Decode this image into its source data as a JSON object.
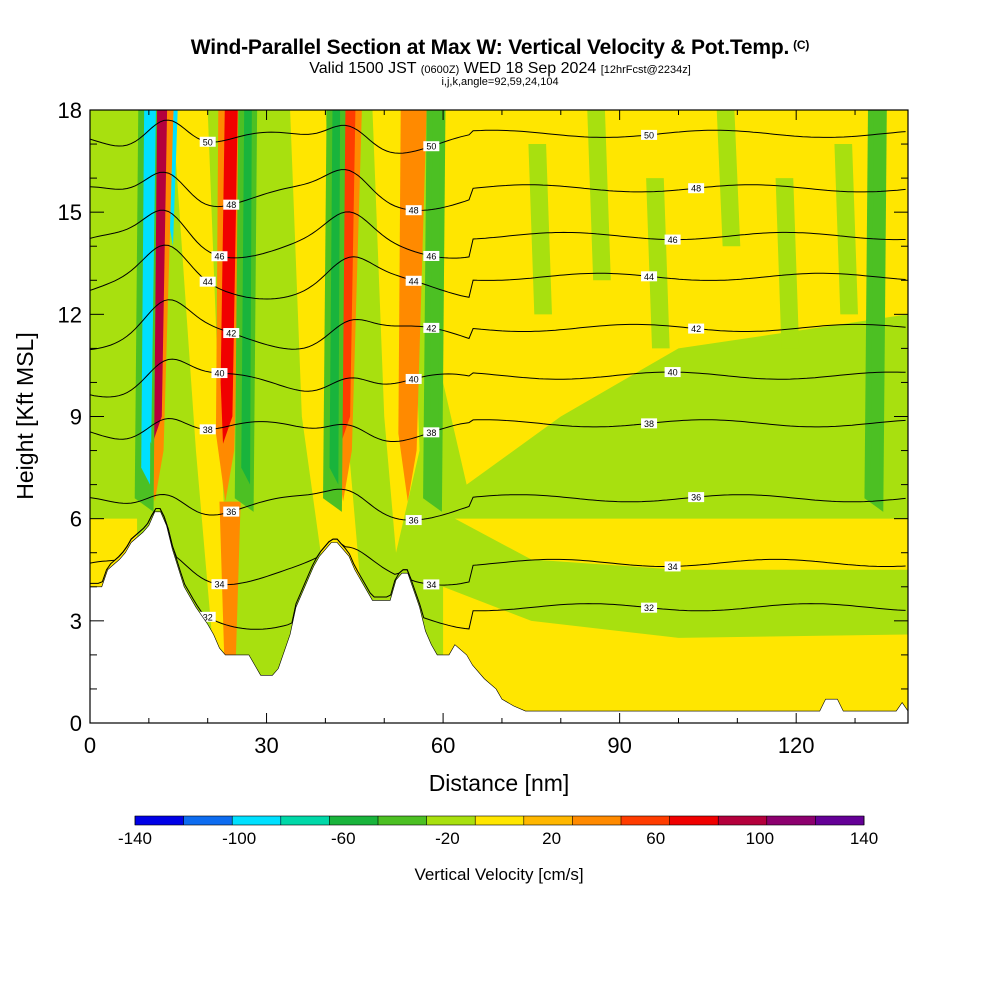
{
  "header": {
    "title": "Wind-Parallel Section at Max W: Vertical Velocity & Pot.Temp.",
    "title_mark": "(C)",
    "valid_a": "Valid 1500 JST",
    "valid_b": "(0600Z)",
    "valid_c": "WED 18 Sep 2024",
    "valid_d": "[12hrFcst@2234z]",
    "params": "i,j,k,angle=92,59,24,104"
  },
  "chart_data": {
    "type": "heatmap",
    "xlabel": "Distance [nm]",
    "ylabel": "Height [Kft MSL]",
    "xlim": [
      0,
      139
    ],
    "ylim": [
      0,
      18
    ],
    "x_ticks": [
      "0",
      "30",
      "60",
      "90",
      "120"
    ],
    "y_ticks": [
      "0",
      "3",
      "6",
      "9",
      "12",
      "15",
      "18"
    ],
    "colorbar": {
      "title": "Vertical Velocity [cm/s]",
      "tick_labels": [
        "-140",
        "-100",
        "-60",
        "-20",
        "20",
        "60",
        "100",
        "140"
      ],
      "range": [
        -140,
        140
      ],
      "colors": [
        "#0000e6",
        "#0d6cf0",
        "#00e0ff",
        "#00d8a8",
        "#19b43c",
        "#4cc023",
        "#a8e00f",
        "#ffe600",
        "#ffb700",
        "#ff8a00",
        "#ff3c00",
        "#f00000",
        "#b4003c",
        "#8c006e",
        "#640096"
      ]
    },
    "background_level": "#a8e00f",
    "updraft_bands": [
      {
        "x_center": 12,
        "peak_cm_s": 120,
        "color_peak": "#b4003c"
      },
      {
        "x_center": 24,
        "peak_cm_s": 90,
        "color_peak": "#f00000"
      },
      {
        "x_center": 44,
        "peak_cm_s": 70,
        "color_peak": "#ff3c00"
      },
      {
        "x_center": 55,
        "peak_cm_s": 50,
        "color_peak": "#ff8a00"
      }
    ],
    "downdraft_bands": [
      {
        "x_center": 10,
        "min_cm_s": -100
      },
      {
        "x_center": 27,
        "min_cm_s": -60
      },
      {
        "x_center": 42,
        "min_cm_s": -60
      },
      {
        "x_center": 59,
        "min_cm_s": -40
      },
      {
        "x_center": 134,
        "min_cm_s": -40
      }
    ],
    "isentropes": [
      {
        "label": "32",
        "y_right": 3.4
      },
      {
        "label": "34",
        "y_right": 4.7
      },
      {
        "label": "36",
        "y_right": 6.6
      },
      {
        "label": "38",
        "y_right": 8.8
      },
      {
        "label": "40",
        "y_right": 10.2
      },
      {
        "label": "42",
        "y_right": 11.6
      },
      {
        "label": "44",
        "y_right": 13.1
      },
      {
        "label": "46",
        "y_right": 14.3
      },
      {
        "label": "48",
        "y_right": 15.7
      },
      {
        "label": "50",
        "y_right": 17.3
      }
    ],
    "terrain_profile": {
      "x": [
        0,
        2,
        3,
        5,
        6,
        7,
        9,
        10,
        11,
        12,
        13,
        14,
        16,
        18,
        20,
        21,
        22,
        23,
        24,
        25,
        26,
        27,
        28,
        29,
        31,
        32,
        34,
        35,
        37,
        38,
        39,
        41,
        42,
        44,
        45,
        47,
        48,
        50,
        51,
        52,
        53,
        54,
        55,
        56,
        57,
        58,
        59,
        61,
        62,
        64,
        65,
        67,
        69,
        70,
        72,
        74,
        76,
        78,
        80,
        82,
        90,
        100,
        110,
        120,
        124,
        125,
        127,
        128,
        130,
        137,
        138,
        139
      ],
      "y": [
        4.0,
        4.0,
        4.5,
        4.8,
        5.0,
        5.3,
        5.6,
        5.8,
        6.2,
        6.2,
        5.8,
        5.1,
        4.0,
        3.4,
        2.9,
        2.6,
        2.2,
        2.0,
        2.0,
        2.0,
        2.0,
        2.0,
        1.7,
        1.4,
        1.4,
        1.6,
        2.6,
        3.4,
        4.2,
        4.6,
        4.9,
        5.3,
        5.3,
        4.9,
        4.5,
        3.9,
        3.6,
        3.6,
        3.6,
        4.2,
        4.4,
        4.4,
        3.9,
        3.4,
        2.7,
        2.3,
        2.0,
        2.0,
        2.3,
        2.0,
        1.7,
        1.3,
        1.0,
        0.7,
        0.5,
        0.35,
        0.35,
        0.35,
        0.35,
        0.35,
        0.35,
        0.35,
        0.35,
        0.35,
        0.35,
        0.7,
        0.7,
        0.35,
        0.35,
        0.35,
        0.6,
        0.35
      ]
    }
  }
}
